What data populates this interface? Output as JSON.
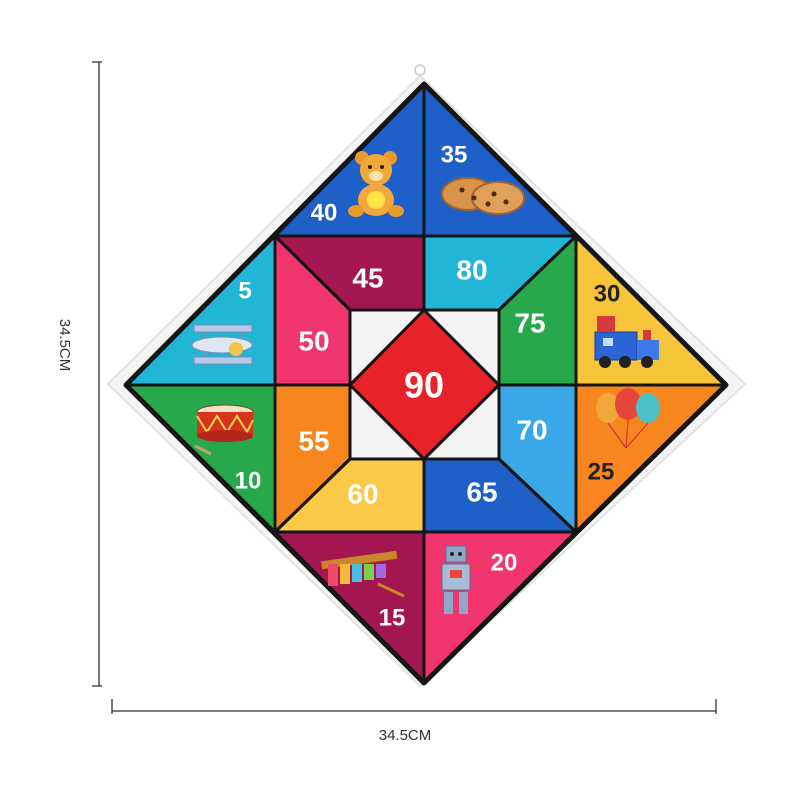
{
  "dimensions": {
    "height_label": "34.5CM",
    "width_label": "34.5CM"
  },
  "board": {
    "center_score": "90",
    "colors": {
      "blue": "#1f5fc8",
      "cyan": "#22b6d6",
      "yellow": "#f7c53a",
      "orange": "#f7861e",
      "green": "#27a84a",
      "red": "#e8222a",
      "magenta": "#a3164f",
      "pink": "#f0356f",
      "light_yellow": "#fbc94a",
      "light_blue": "#3aa7e8"
    },
    "scores": {
      "s40": "40",
      "s35": "35",
      "s5": "5",
      "s30": "30",
      "s10": "10",
      "s25": "25",
      "s15": "15",
      "s20": "20",
      "s45": "45",
      "s80": "80",
      "s50": "50",
      "s75": "75",
      "s55": "55",
      "s70": "70",
      "s60": "60",
      "s65": "65"
    },
    "pictures": {
      "teddy": "teddy-bear-icon",
      "cookies": "cookies-icon",
      "plane": "airplane-icon",
      "train": "toy-train-icon",
      "drum": "drum-icon",
      "balloons": "balloons-icon",
      "xylophone": "xylophone-icon",
      "robot": "robot-icon"
    }
  }
}
